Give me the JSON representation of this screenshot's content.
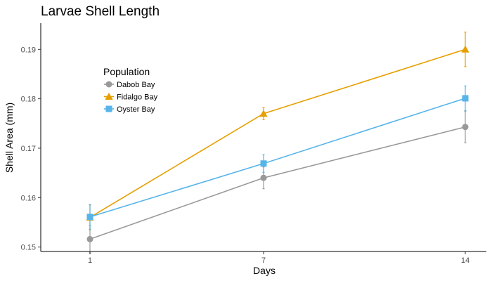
{
  "chart_data": {
    "type": "line",
    "title": "Larvae Shell Length",
    "xlabel": "Days",
    "ylabel": "Shell Area (mm)",
    "x": [
      1,
      7,
      14
    ],
    "x_tick_labels": [
      "1",
      "7",
      "14"
    ],
    "y_ticks": [
      0.15,
      0.16,
      0.17,
      0.18,
      0.19
    ],
    "y_tick_labels": [
      "0.15",
      "0.16",
      "0.17",
      "0.18",
      "0.19"
    ],
    "ylim": [
      0.1491,
      0.1953
    ],
    "grid": false,
    "error_bars": true,
    "legend": {
      "title": "Population",
      "position": "upper-left"
    },
    "series": [
      {
        "name": "Dabob Bay",
        "color": "#999999",
        "marker": "circle",
        "values": [
          0.1516,
          0.164,
          0.1743
        ],
        "errors": [
          0.0028,
          0.0022,
          0.0032
        ]
      },
      {
        "name": "Fidalgo Bay",
        "color": "#E69F00",
        "marker": "triangle",
        "values": [
          0.156,
          0.177,
          0.19
        ],
        "errors": [
          0.0025,
          0.0012,
          0.0035
        ]
      },
      {
        "name": "Oyster Bay",
        "color": "#56B4E9",
        "marker": "square",
        "values": [
          0.1561,
          0.1669,
          0.1801
        ],
        "errors": [
          0.0025,
          0.0018,
          0.0025
        ]
      }
    ]
  }
}
